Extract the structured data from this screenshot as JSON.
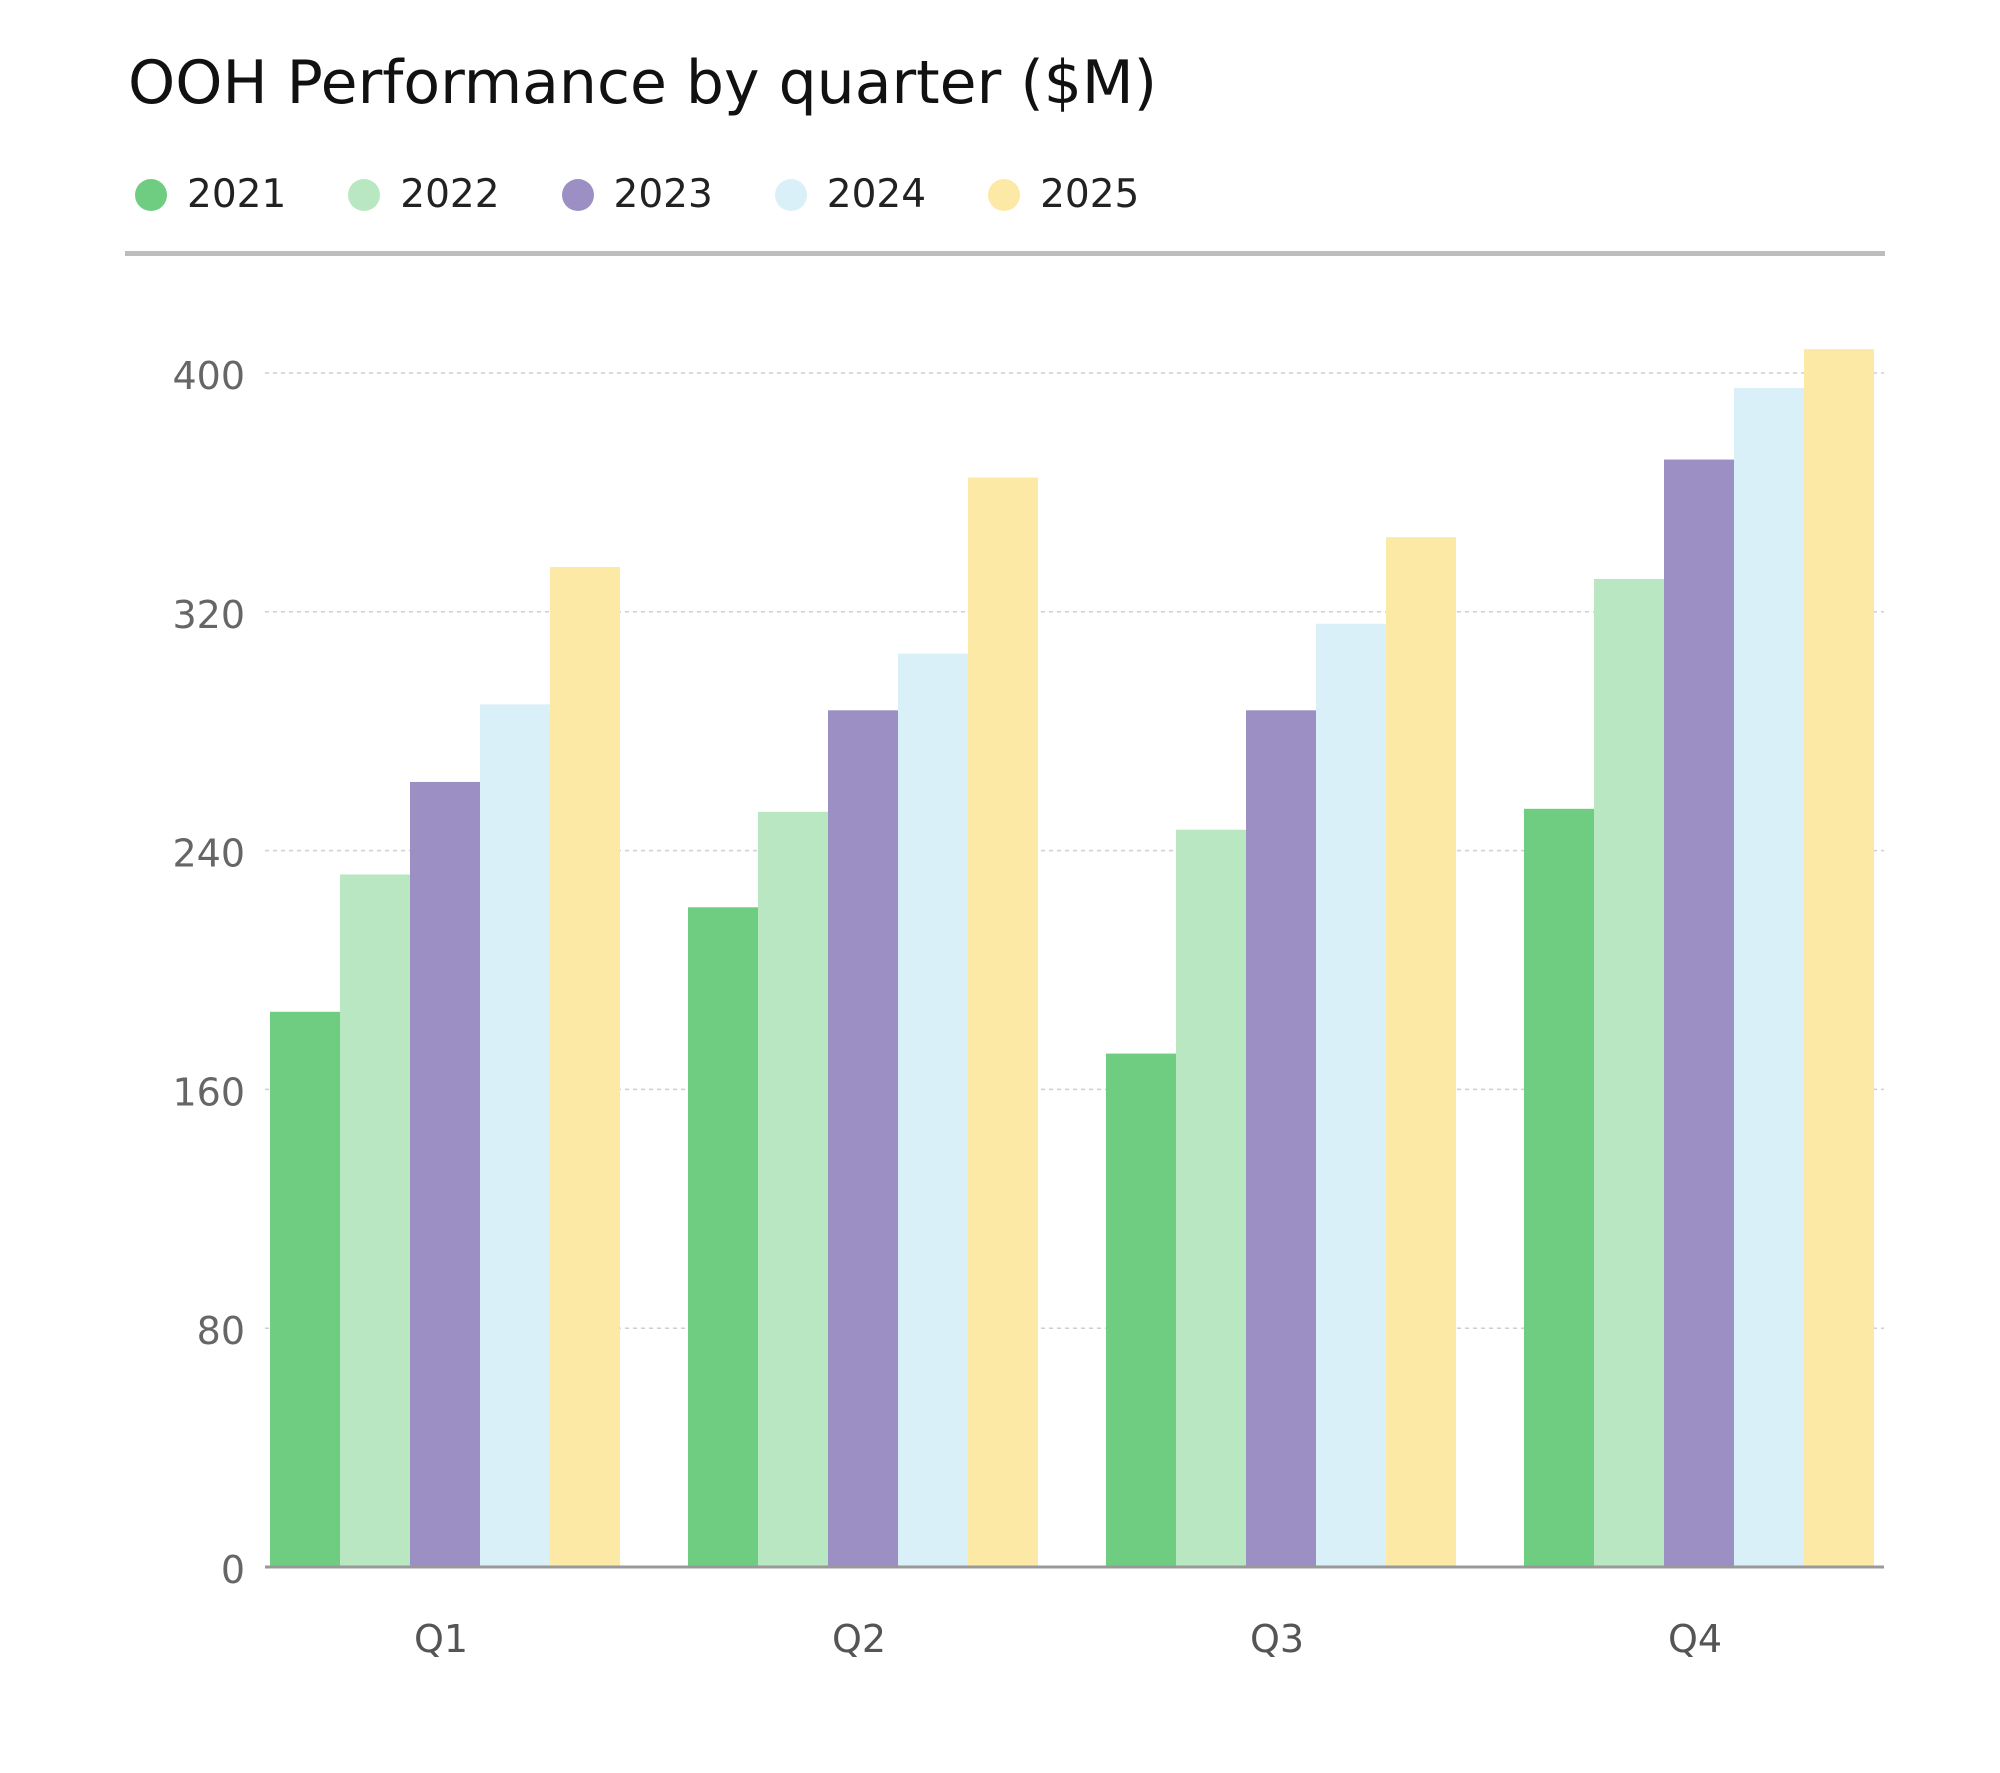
{
  "chart_data": {
    "type": "bar",
    "title": "OOH Performance by quarter ($M)",
    "xlabel": "",
    "ylabel": "",
    "categories": [
      "Q1",
      "Q2",
      "Q3",
      "Q4"
    ],
    "ylim": [
      0,
      400
    ],
    "yticks": [
      0,
      80,
      160,
      240,
      320,
      400
    ],
    "grid": true,
    "legend_position": "top-left",
    "series": [
      {
        "name": "2021",
        "color": "#6fcd82",
        "values": [
          186,
          221,
          172,
          254
        ]
      },
      {
        "name": "2022",
        "color": "#b9e7c2",
        "values": [
          232,
          253,
          247,
          331
        ]
      },
      {
        "name": "2023",
        "color": "#9b8fc3",
        "values": [
          263,
          287,
          287,
          371
        ]
      },
      {
        "name": "2024",
        "color": "#daf0f8",
        "values": [
          289,
          306,
          316,
          395
        ]
      },
      {
        "name": "2025",
        "color": "#fde9a6",
        "values": [
          335,
          365,
          345,
          408
        ]
      }
    ]
  }
}
